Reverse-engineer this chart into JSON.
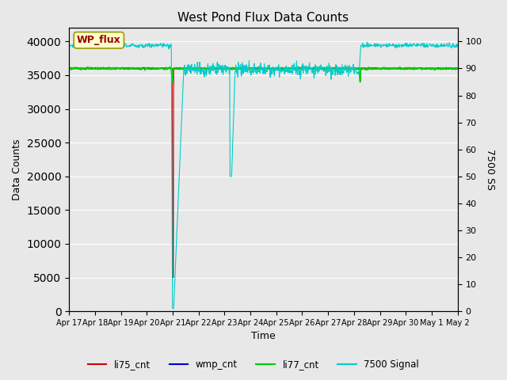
{
  "title": "West Pond Flux Data Counts",
  "xlabel": "Time",
  "ylabel_left": "Data Counts",
  "ylabel_right": "7500 SS",
  "ylim_left": [
    0,
    42000
  ],
  "ylim_right": [
    0,
    105
  ],
  "bg_color": "#e8e8e8",
  "annotation_text": "WP_flux",
  "annotation_color": "#990000",
  "annotation_bg": "#ffffcc",
  "annotation_edge": "#999900",
  "x_tick_labels": [
    "Apr 17",
    "Apr 18",
    "Apr 19",
    "Apr 20",
    "Apr 21",
    "Apr 22",
    "Apr 23",
    "Apr 24",
    "Apr 25",
    "Apr 26",
    "Apr 27",
    "Apr 28",
    "Apr 29",
    "Apr 30",
    "May 1",
    "May 2"
  ],
  "li75_color": "#cc0000",
  "wmp_color": "#0000cc",
  "li77_color": "#00cc00",
  "sig_color": "#00cccc",
  "grid_color": "#ffffff",
  "num_points": 1000
}
